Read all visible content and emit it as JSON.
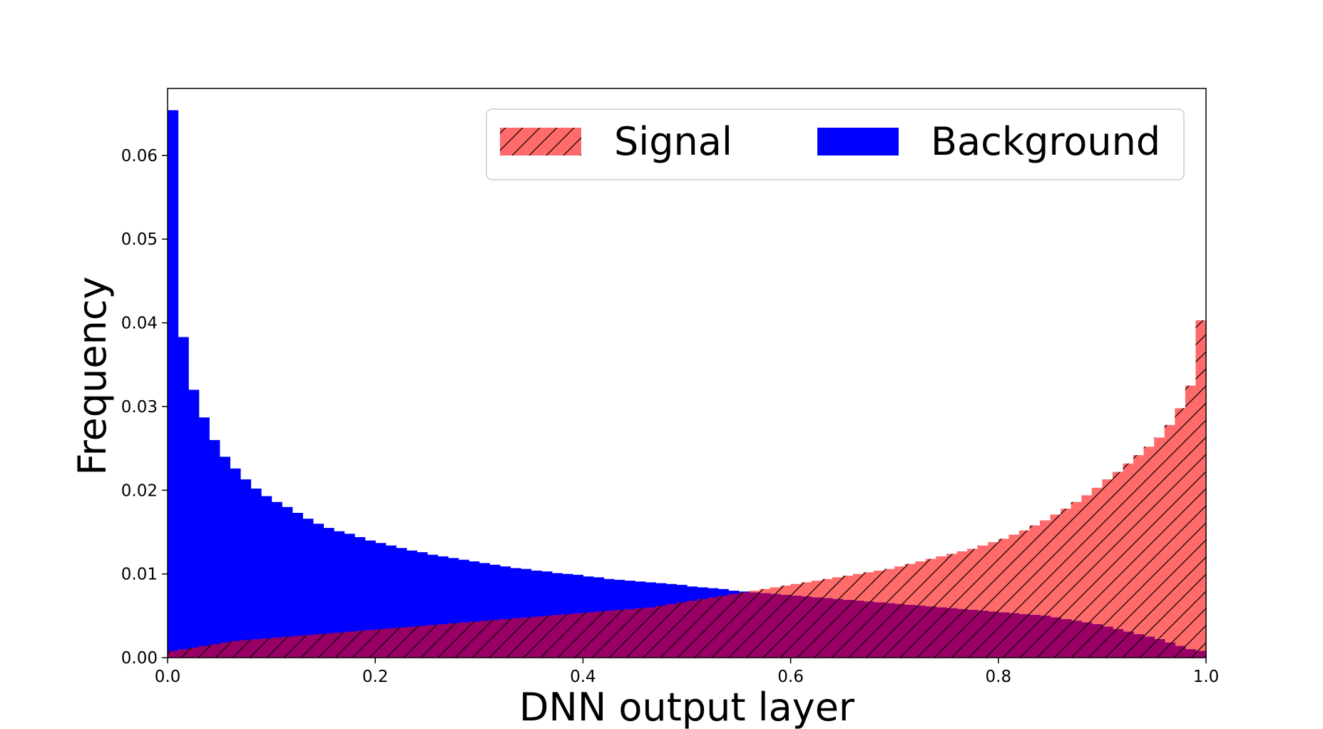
{
  "chart_data": {
    "type": "bar",
    "histogram": true,
    "bins": 100,
    "xlabel": "DNN output layer",
    "ylabel": "Frequency",
    "xlim": [
      0.0,
      1.0
    ],
    "ylim": [
      0.0,
      0.068
    ],
    "xticks": [
      "0.0",
      "0.2",
      "0.4",
      "0.6",
      "0.8",
      "1.0"
    ],
    "yticks": [
      "0.00",
      "0.01",
      "0.02",
      "0.03",
      "0.04",
      "0.05",
      "0.06"
    ],
    "legend": {
      "placement": "top-right",
      "columns": 2
    },
    "series": [
      {
        "name": "Signal",
        "color": "#ff6a6a",
        "pattern": "diagonal-hatch",
        "values": [
          0.0008,
          0.001,
          0.0012,
          0.0014,
          0.0016,
          0.0018,
          0.002,
          0.0021,
          0.0022,
          0.0023,
          0.0024,
          0.0025,
          0.0026,
          0.0027,
          0.0028,
          0.0029,
          0.003,
          0.0031,
          0.0032,
          0.0033,
          0.0034,
          0.0035,
          0.0036,
          0.0037,
          0.0038,
          0.0039,
          0.004,
          0.0041,
          0.0042,
          0.0043,
          0.0044,
          0.0045,
          0.0046,
          0.0047,
          0.0048,
          0.0049,
          0.005,
          0.0051,
          0.0052,
          0.0053,
          0.0054,
          0.0055,
          0.0056,
          0.0057,
          0.0058,
          0.0059,
          0.006,
          0.0062,
          0.0064,
          0.0066,
          0.0068,
          0.007,
          0.0072,
          0.0074,
          0.0076,
          0.0078,
          0.008,
          0.0082,
          0.0084,
          0.0086,
          0.0088,
          0.009,
          0.0092,
          0.0094,
          0.0096,
          0.0098,
          0.01,
          0.0102,
          0.0104,
          0.0106,
          0.0109,
          0.0112,
          0.0115,
          0.0118,
          0.0121,
          0.0124,
          0.0127,
          0.013,
          0.0134,
          0.0138,
          0.0142,
          0.0147,
          0.0152,
          0.0158,
          0.0164,
          0.0171,
          0.0178,
          0.0186,
          0.0194,
          0.0203,
          0.0213,
          0.0222,
          0.0232,
          0.0242,
          0.0252,
          0.0263,
          0.0278,
          0.0298,
          0.0325,
          0.0403
        ]
      },
      {
        "name": "Background",
        "color": "#0000ff",
        "pattern": "solid",
        "values": [
          0.0654,
          0.0383,
          0.032,
          0.0287,
          0.026,
          0.024,
          0.0226,
          0.0213,
          0.0202,
          0.0193,
          0.0186,
          0.018,
          0.0173,
          0.0166,
          0.016,
          0.0155,
          0.0151,
          0.0148,
          0.0144,
          0.014,
          0.0137,
          0.0134,
          0.0131,
          0.0128,
          0.0126,
          0.0123,
          0.0121,
          0.0119,
          0.0117,
          0.0115,
          0.0113,
          0.0111,
          0.0109,
          0.0107,
          0.0106,
          0.0104,
          0.0103,
          0.0101,
          0.01,
          0.0099,
          0.0097,
          0.0096,
          0.0094,
          0.0093,
          0.0092,
          0.0091,
          0.009,
          0.0089,
          0.0088,
          0.0087,
          0.0085,
          0.0084,
          0.0083,
          0.0082,
          0.008,
          0.0079,
          0.0078,
          0.0077,
          0.0076,
          0.0075,
          0.0074,
          0.0073,
          0.0072,
          0.0071,
          0.007,
          0.0069,
          0.0068,
          0.0067,
          0.0066,
          0.0065,
          0.0064,
          0.0063,
          0.0062,
          0.0061,
          0.006,
          0.0059,
          0.0058,
          0.0057,
          0.0056,
          0.0055,
          0.0054,
          0.0053,
          0.0052,
          0.0051,
          0.005,
          0.0048,
          0.0046,
          0.0044,
          0.0042,
          0.004,
          0.0037,
          0.0034,
          0.0031,
          0.0028,
          0.0025,
          0.0022,
          0.0018,
          0.0014,
          0.001,
          0.0008
        ]
      }
    ]
  }
}
